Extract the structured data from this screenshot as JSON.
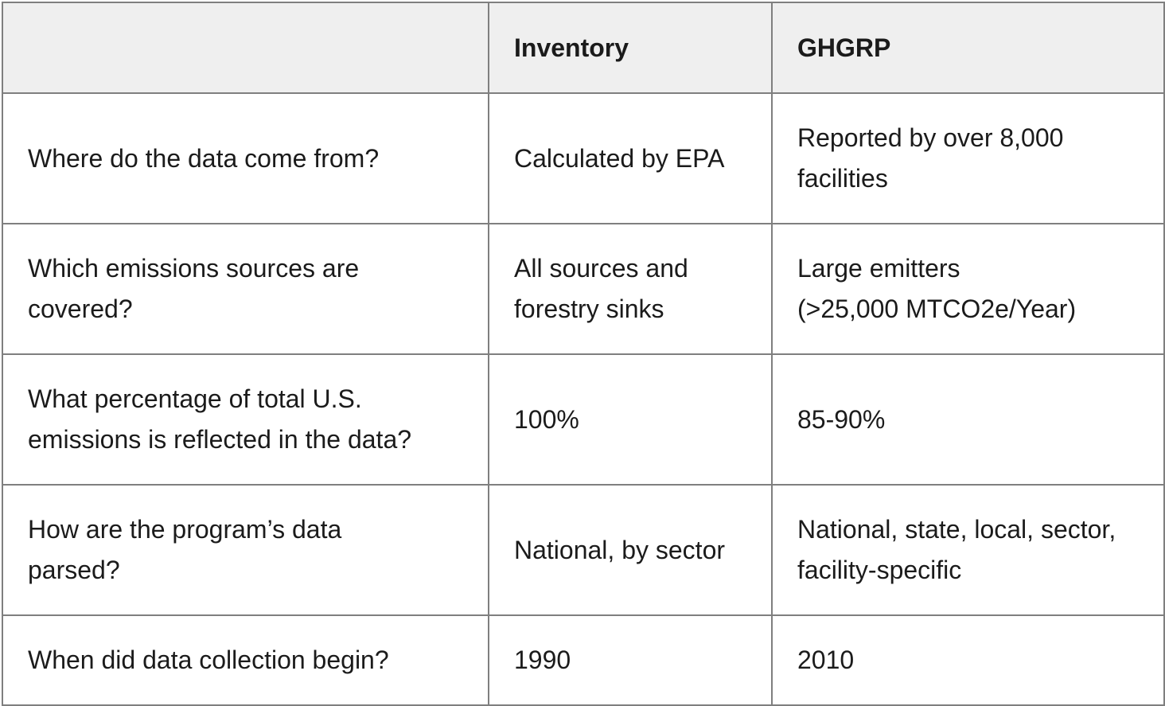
{
  "table": {
    "headers": [
      "",
      "Inventory",
      "GHGRP"
    ],
    "rows": [
      {
        "question": "Where do the data come from?",
        "inventory": "Calculated by EPA",
        "ghgrp": "Reported by over 8,000\nfacilities"
      },
      {
        "question": "Which emissions sources are\ncovered?",
        "inventory": "All sources and\nforestry sinks",
        "ghgrp": "Large emitters\n(>25,000 MTCO2e/Year)"
      },
      {
        "question": "What percentage of total U.S.\nemissions is reflected in the data?",
        "inventory": "100%",
        "ghgrp": "85-90%"
      },
      {
        "question": "How are the program’s data\nparsed?",
        "inventory": "National, by sector",
        "ghgrp": "National, state, local, sector,\nfacility-specific"
      },
      {
        "question": "When did data collection begin?",
        "inventory": "1990",
        "ghgrp": "2010"
      }
    ]
  }
}
